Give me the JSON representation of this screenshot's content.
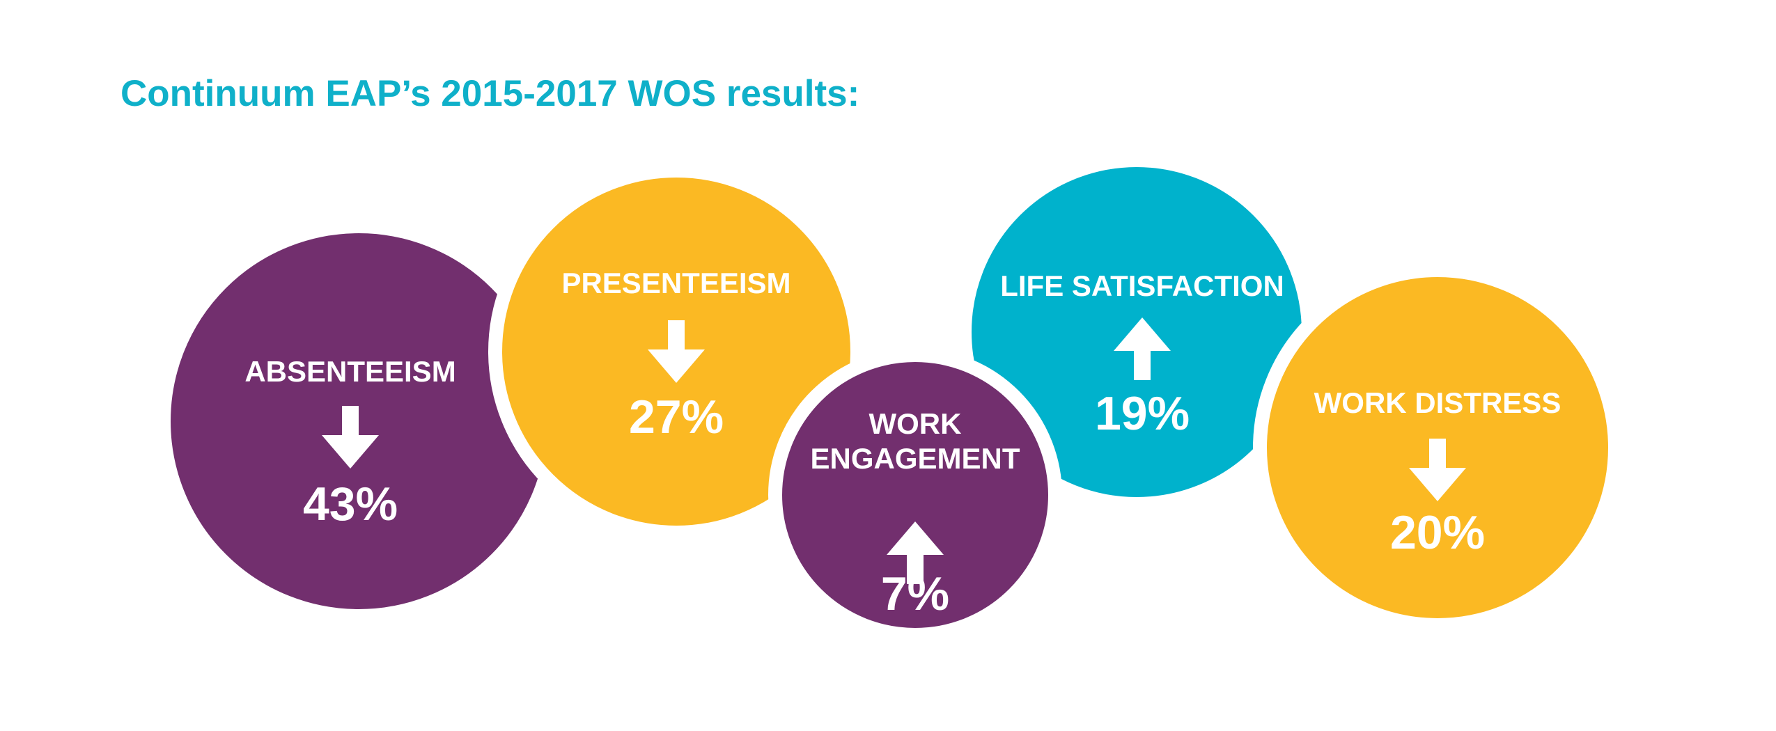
{
  "header": {
    "title": "Continuum EAP’s 2015-2017 WOS results:"
  },
  "items": [
    {
      "label": [
        "ABSENTEEISM"
      ],
      "value": "43%",
      "direction": "down",
      "color": "#722f6e"
    },
    {
      "label": [
        "PRESENTEEISM"
      ],
      "value": "27%",
      "direction": "down",
      "color": "#fbb923"
    },
    {
      "label": [
        "WORK",
        "ENGAGEMENT"
      ],
      "value": "7%",
      "direction": "up",
      "color": "#722f6e"
    },
    {
      "label": [
        "LIFE SATISFACTION"
      ],
      "value": "19%",
      "direction": "up",
      "color": "#00b2cc"
    },
    {
      "label": [
        "WORK DISTRESS"
      ],
      "value": "20%",
      "direction": "down",
      "color": "#fbb923"
    }
  ]
}
